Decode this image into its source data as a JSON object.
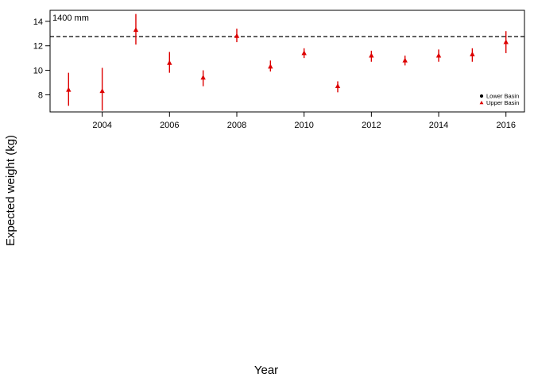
{
  "chart_data": {
    "type": "scatter",
    "title": "",
    "xlabel": "Year",
    "ylabel": "Expected weight (kg)",
    "xlim": [
      2002.45,
      2016.55
    ],
    "ylim": [
      6.6,
      14.9
    ],
    "xticks": [
      2004,
      2006,
      2008,
      2010,
      2012,
      2014,
      2016
    ],
    "yticks": [
      8,
      10,
      12,
      14
    ],
    "grid": false,
    "legend_position": "bottom-right",
    "reference_line": {
      "y": 12.75,
      "style": "dashed",
      "label": "1400 mm"
    },
    "series": [
      {
        "name": "Lower Basin",
        "marker": "circle",
        "color": "#000000",
        "points": []
      },
      {
        "name": "Upper Basin",
        "marker": "triangle",
        "color": "#dd0000",
        "points": [
          {
            "x": 2003,
            "y": 8.4,
            "lo": 7.1,
            "hi": 9.8
          },
          {
            "x": 2004,
            "y": 8.3,
            "lo": 6.7,
            "hi": 10.2
          },
          {
            "x": 2005,
            "y": 13.3,
            "lo": 12.1,
            "hi": 14.6
          },
          {
            "x": 2006,
            "y": 10.6,
            "lo": 9.8,
            "hi": 11.5
          },
          {
            "x": 2007,
            "y": 9.4,
            "lo": 8.7,
            "hi": 10.0
          },
          {
            "x": 2008,
            "y": 12.8,
            "lo": 12.3,
            "hi": 13.4
          },
          {
            "x": 2009,
            "y": 10.3,
            "lo": 9.9,
            "hi": 10.8
          },
          {
            "x": 2010,
            "y": 11.4,
            "lo": 11.0,
            "hi": 11.8
          },
          {
            "x": 2011,
            "y": 8.7,
            "lo": 8.2,
            "hi": 9.1
          },
          {
            "x": 2012,
            "y": 11.2,
            "lo": 10.7,
            "hi": 11.6
          },
          {
            "x": 2013,
            "y": 10.8,
            "lo": 10.4,
            "hi": 11.2
          },
          {
            "x": 2014,
            "y": 11.2,
            "lo": 10.7,
            "hi": 11.7
          },
          {
            "x": 2015,
            "y": 11.3,
            "lo": 10.7,
            "hi": 11.8
          },
          {
            "x": 2016,
            "y": 12.3,
            "lo": 11.4,
            "hi": 13.2
          }
        ]
      }
    ]
  }
}
